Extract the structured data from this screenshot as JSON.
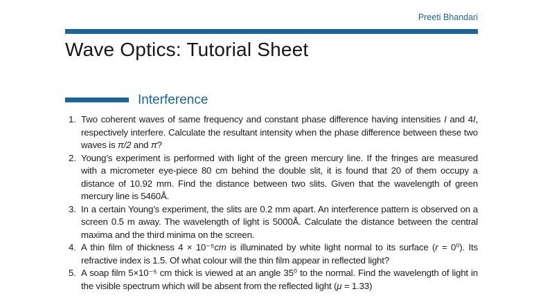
{
  "page": {
    "author": "Preeti Bhandari",
    "title": "Wave Optics: Tutorial Sheet",
    "section": {
      "label": "Interference"
    },
    "colors": {
      "accent_blue": "#1a659c",
      "text": "#1c1c1c",
      "background": "#ffffff"
    }
  },
  "problems": {
    "items": [
      {
        "number": "1.",
        "segments": [
          {
            "text": "Two coherent waves of same frequency and constant phase difference having intensities "
          },
          {
            "text": "I",
            "math": true
          },
          {
            "text": " and 4"
          },
          {
            "text": "I",
            "math": true
          },
          {
            "text": ", respectively interfere. Calculate the resultant intensity when the phase difference between these two waves is "
          },
          {
            "text": "π/2",
            "math": true
          },
          {
            "text": " and "
          },
          {
            "text": "π",
            "math": true
          },
          {
            "text": "?"
          }
        ]
      },
      {
        "number": "2.",
        "segments": [
          {
            "text": "Young’s experiment is performed with light of the green mercury line. If the fringes are measured with a micrometer eye-piece 80 cm behind the double slit, it is found that 20 of them occupy a distance of 10.92 mm. Find the distance between two slits. Given that the wavelength of green mercury line is 5460Å."
          }
        ]
      },
      {
        "number": "3.",
        "segments": [
          {
            "text": "In a certain Young’s experiment, the slits are 0.2 mm apart. An interference pattern is observed on a screen 0.5 m away. The wavelength of light is 5000Å. Calculate the distance between the central maxima and the third minima on the screen."
          }
        ]
      },
      {
        "number": "4.",
        "segments": [
          {
            "text": "A thin film of thickness 4 × 10⁻⁵"
          },
          {
            "text": "cm",
            "math": true
          },
          {
            "text": " is illuminated by white light normal to its surface ("
          },
          {
            "text": "r",
            "math": true
          },
          {
            "text": " = 0⁰). Its refractive index is 1.5. Of what colour will the thin film appear in reflected light?"
          }
        ]
      },
      {
        "number": "5.",
        "segments": [
          {
            "text": "A soap film 5×10⁻⁵ cm thick is viewed at an angle 35⁰ to the normal. Find the wavelength of light in the visible spectrum which will be absent from the reflected light ("
          },
          {
            "text": "μ",
            "math": true
          },
          {
            "text": " = 1.33)"
          }
        ]
      }
    ]
  }
}
